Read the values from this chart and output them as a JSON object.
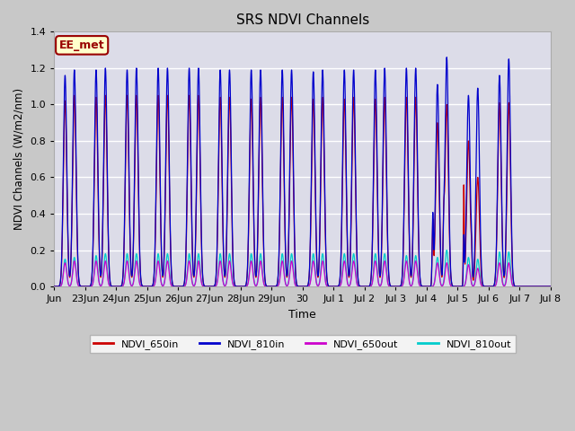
{
  "title": "SRS NDVI Channels",
  "xlabel": "Time",
  "ylabel": "NDVI Channels (W/m2/nm)",
  "ylim": [
    0,
    1.4
  ],
  "facecolor": "#d8d8d8",
  "plot_bg_color": "#e0e0e8",
  "legend_labels": [
    "NDVI_650in",
    "NDVI_810in",
    "NDVI_650out",
    "NDVI_810out"
  ],
  "annotation_text": "EE_met",
  "annotation_color": "#990000",
  "annotation_bg": "#ffffcc",
  "color_650in": "#cc0000",
  "color_810in": "#0000cc",
  "color_650out": "#cc00cc",
  "color_810out": "#00cccc",
  "xtick_labels": [
    "Jun",
    "23Jun",
    "24Jun",
    "25Jun",
    "26Jun",
    "27Jun",
    "28Jun",
    "29Jun",
    "30",
    "Jul 1",
    "Jul 2",
    "Jul 3",
    "Jul 4",
    "Jul 5",
    "Jul 6",
    "Jul 7",
    "Jul 8"
  ],
  "peak_data": [
    [
      1.02,
      1.16,
      0.13,
      0.15,
      1.05,
      1.19,
      0.14,
      0.16
    ],
    [
      1.04,
      1.19,
      0.14,
      0.17,
      1.05,
      1.2,
      0.14,
      0.18
    ],
    [
      1.05,
      1.19,
      0.14,
      0.18,
      1.05,
      1.2,
      0.14,
      0.18
    ],
    [
      1.05,
      1.2,
      0.14,
      0.18,
      1.05,
      1.2,
      0.14,
      0.18
    ],
    [
      1.05,
      1.2,
      0.14,
      0.18,
      1.05,
      1.2,
      0.14,
      0.18
    ],
    [
      1.04,
      1.19,
      0.14,
      0.18,
      1.04,
      1.19,
      0.14,
      0.18
    ],
    [
      1.03,
      1.19,
      0.14,
      0.18,
      1.04,
      1.19,
      0.14,
      0.18
    ],
    [
      1.04,
      1.19,
      0.14,
      0.18,
      1.04,
      1.19,
      0.14,
      0.18
    ],
    [
      1.03,
      1.18,
      0.14,
      0.18,
      1.04,
      1.19,
      0.14,
      0.18
    ],
    [
      1.03,
      1.19,
      0.14,
      0.18,
      1.04,
      1.19,
      0.14,
      0.18
    ],
    [
      1.03,
      1.19,
      0.14,
      0.18,
      1.04,
      1.2,
      0.14,
      0.18
    ],
    [
      1.04,
      1.2,
      0.14,
      0.17,
      1.04,
      1.2,
      0.14,
      0.17
    ],
    [
      0.9,
      1.11,
      0.13,
      0.16,
      1.0,
      1.26,
      0.13,
      0.2
    ],
    [
      0.8,
      1.05,
      0.12,
      0.16,
      0.6,
      1.09,
      0.1,
      0.15
    ],
    [
      1.01,
      1.16,
      0.13,
      0.19,
      1.01,
      1.25,
      0.13,
      0.19
    ],
    [
      0.0,
      0.0,
      0.0,
      0.0,
      0.0,
      0.0,
      0.0,
      0.0
    ]
  ]
}
